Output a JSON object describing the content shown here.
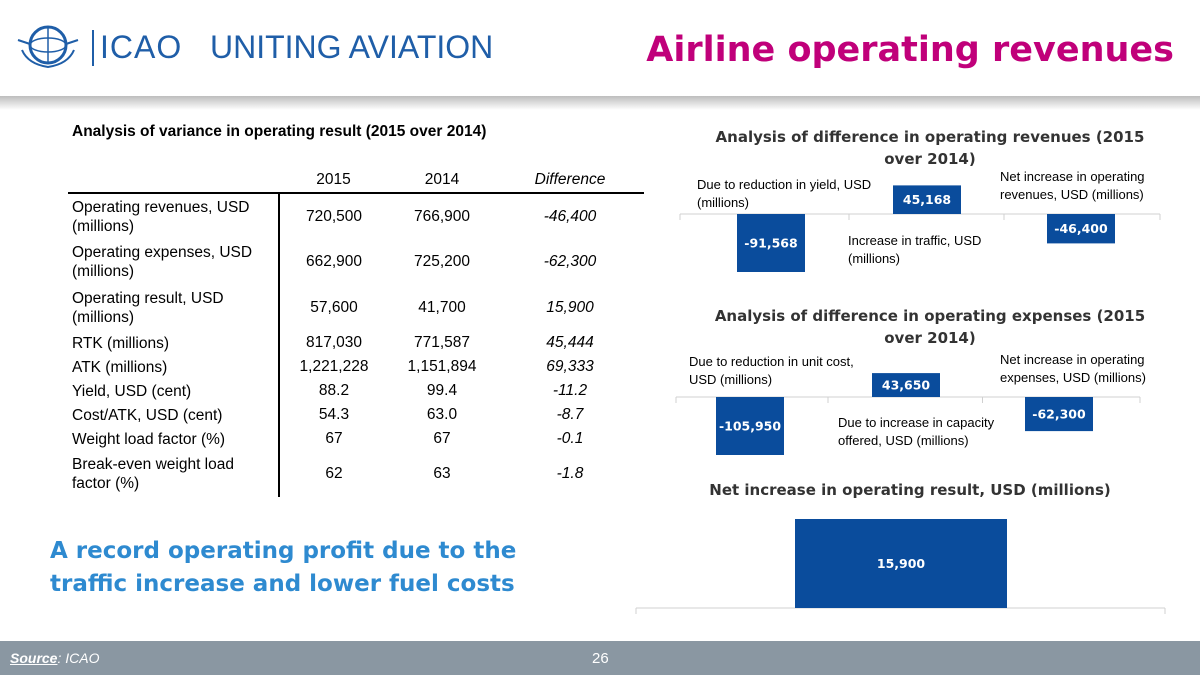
{
  "header": {
    "logo_text": "ICAO",
    "slogan": "UNITING AVIATION",
    "title": "Airline operating revenues"
  },
  "table": {
    "title": "Analysis of variance in operating result (2015 over 2014)",
    "columns": [
      "2015",
      "2014",
      "Difference"
    ],
    "rows": [
      {
        "label": "Operating revenues, USD (millions)",
        "v2015": "720,500",
        "v2014": "766,900",
        "diff": "-46,400"
      },
      {
        "label": "Operating expenses, USD (millions)",
        "v2015": "662,900",
        "v2014": "725,200",
        "diff": "-62,300"
      },
      {
        "label": "Operating result, USD (millions)",
        "v2015": "57,600",
        "v2014": "41,700",
        "diff": "15,900"
      },
      {
        "label": "RTK (millions)",
        "v2015": "817,030",
        "v2014": "771,587",
        "diff": "45,444"
      },
      {
        "label": "ATK (millions)",
        "v2015": "1,221,228",
        "v2014": "1,151,894",
        "diff": "69,333"
      },
      {
        "label": "Yield, USD (cent)",
        "v2015": "88.2",
        "v2014": "99.4",
        "diff": "-11.2"
      },
      {
        "label": "Cost/ATK, USD (cent)",
        "v2015": "54.3",
        "v2014": "63.0",
        "diff": "-8.7"
      },
      {
        "label": "Weight load factor (%)",
        "v2015": "67",
        "v2014": "67",
        "diff": "-0.1"
      },
      {
        "label": "Break-even weight load factor (%)",
        "v2015": "62",
        "v2014": "63",
        "diff": "-1.8"
      }
    ]
  },
  "subtitle": "A record operating profit due to the traffic increase and lower fuel costs",
  "footer": {
    "source_label": "Source",
    "source_value": ": ICAO",
    "page_number": "26"
  },
  "colors": {
    "bar": "#0a4c9c",
    "title": "#c0007a",
    "subtitle": "#2e8ad0",
    "footer": "#8a97a2"
  },
  "chart_data": [
    {
      "type": "bar",
      "title": "Analysis of difference in operating revenues (2015 over 2014)",
      "categories": [
        "Due to reduction in yield, USD (millions)",
        "Increase in traffic, USD (millions)",
        "Net increase in operating revenues, USD (millions)"
      ],
      "values": [
        -91568,
        45168,
        -46400
      ],
      "labels": [
        "-91,568",
        "45,168",
        "-46,400"
      ]
    },
    {
      "type": "bar",
      "title": "Analysis of difference in operating expenses (2015 over 2014)",
      "categories": [
        "Due to reduction in unit cost, USD (millions)",
        "Due to increase in capacity offered, USD (millions)",
        "Net increase in operating expenses, USD (millions)"
      ],
      "values": [
        -105950,
        43650,
        -62300
      ],
      "labels": [
        "-105,950",
        "43,650",
        "-62,300"
      ]
    },
    {
      "type": "bar",
      "title": "Net increase in operating result, USD (millions)",
      "categories": [],
      "values": [
        15900
      ],
      "labels": [
        "15,900"
      ]
    }
  ]
}
